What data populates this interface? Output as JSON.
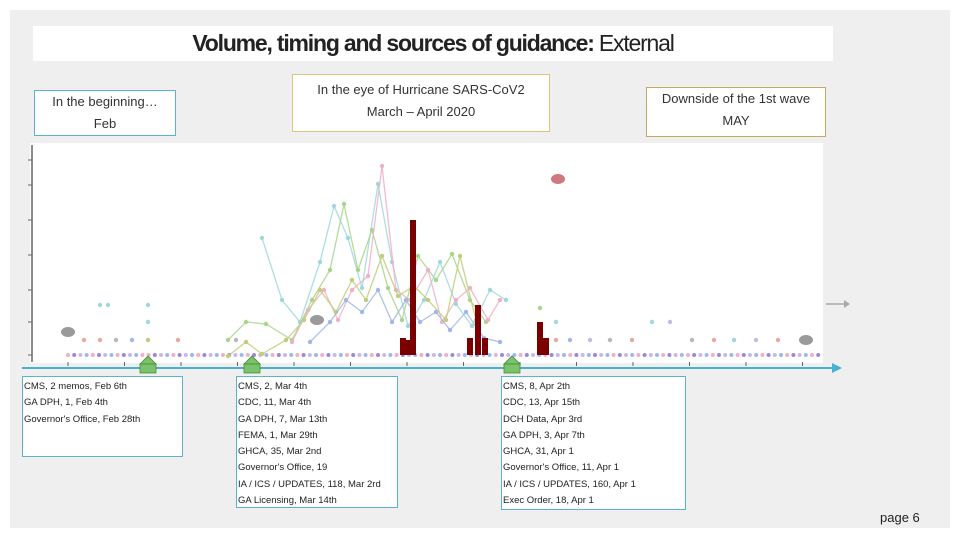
{
  "title": {
    "bold": "Volume, timing and sources of guidance:",
    "normal": " External"
  },
  "phases": {
    "feb": {
      "line1": "In the beginning…",
      "line2": "Feb"
    },
    "mar": {
      "line1": "In the eye of Hurricane SARS-CoV2",
      "line2": "March – April  2020"
    },
    "may": {
      "line1": "Downside of the 1st wave",
      "line2": "MAY"
    }
  },
  "annotations": {
    "feb": [
      "CMS, 2 memos, Feb 6th",
      "GA DPH, 1, Feb 4th",
      "Governor's Office, Feb 28th"
    ],
    "mar": [
      "CMS, 2, Mar 4th",
      "CDC, 11, Mar 4th",
      "GA DPH, 7, Mar 13th",
      "FEMA, 1, Mar 29th",
      "GHCA, 35, Mar 2nd",
      "Governor's Office, 19",
      "IA / ICS / UPDATES, 118,  Mar 2rd",
      "GA  Licensing, Mar 14th"
    ],
    "apr": [
      "CMS, 8, Apr 2th",
      "CDC, 13, Apr 15th",
      "DCH Data, Apr 3rd",
      "GA DPH, 3, Apr 7th",
      "GHCA, 31, Apr 1",
      "Governor's Office, 11, Apr 1",
      "IA / ICS / UPDATES, 160,  Apr 1",
      "Exec Order, 18, Apr 1"
    ]
  },
  "page_number": "page 6",
  "colors": {
    "timeline": "#4ab0d0",
    "marker": "#7ac36a",
    "bars": "#7a0000",
    "cyan": "#9fd8dc",
    "green": "#a7d68a",
    "pink": "#efb0c8",
    "olive": "#c2cc7a",
    "blue": "#9fb8e8",
    "salmon": "#eaa8a0",
    "lavender": "#c8b8e8",
    "purple": "#9c88d8",
    "gray": "#b8b8b8"
  }
}
